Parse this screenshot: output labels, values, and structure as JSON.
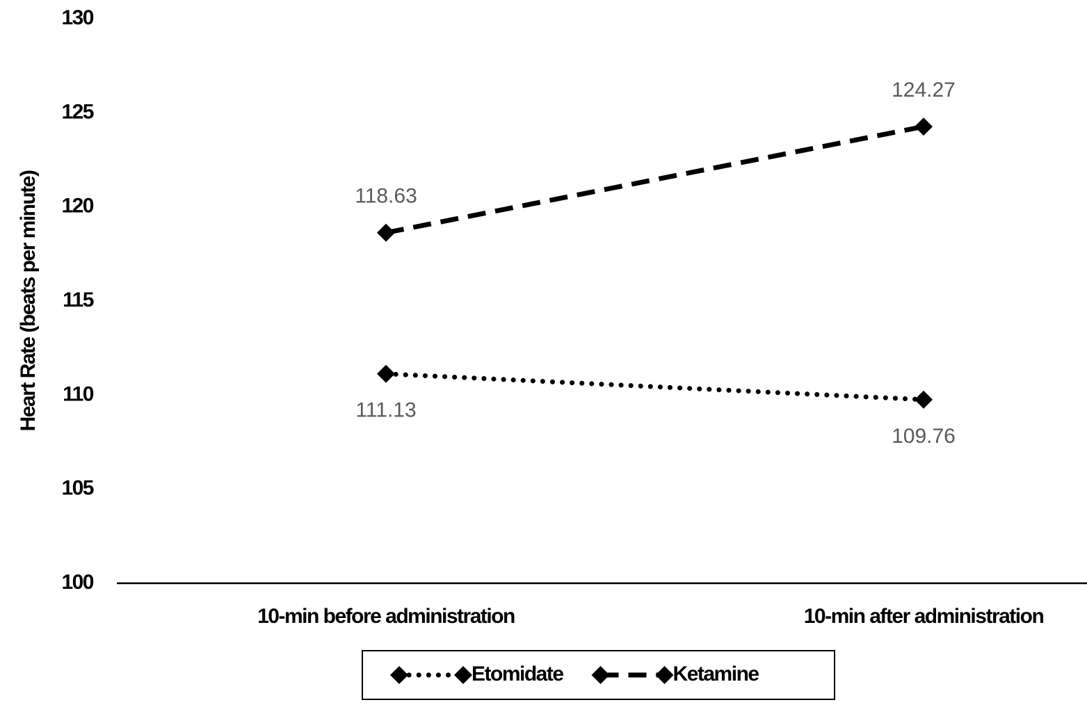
{
  "chart_data": {
    "type": "line",
    "y_label": "Heart Rate (beats per minute)",
    "categories": [
      "10-min before administration",
      "10-min after administration"
    ],
    "series": [
      {
        "name": "Etomidate",
        "color": "#000000",
        "line_style": "dotted",
        "marker": "diamond",
        "label_position": "below",
        "values": [
          111.13,
          109.76
        ]
      },
      {
        "name": "Ketamine",
        "color": "#000000",
        "line_style": "dashed",
        "marker": "diamond",
        "label_position": "above",
        "values": [
          118.63,
          124.27
        ]
      }
    ],
    "ylim": [
      100,
      130
    ],
    "yticks": [
      100,
      105,
      110,
      115,
      120,
      125,
      130
    ],
    "grid": false,
    "legend": "bottom"
  }
}
